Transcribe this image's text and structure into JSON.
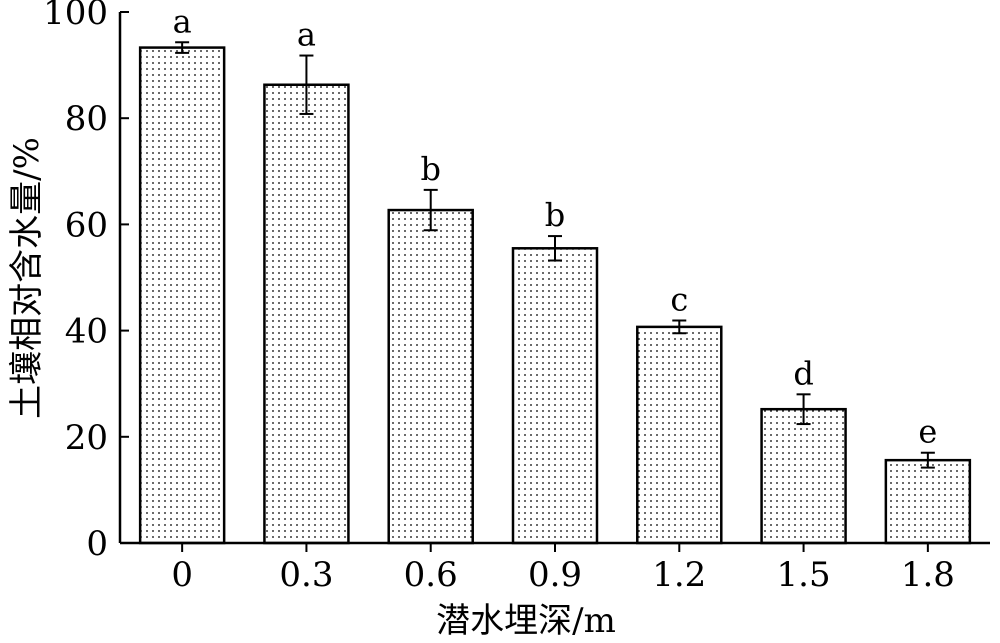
{
  "chart_data": {
    "type": "bar",
    "title": "",
    "xlabel": "潜水埋深/m",
    "ylabel": "土壤相对含水量/%",
    "categories": [
      "0",
      "0.3",
      "0.6",
      "0.9",
      "1.2",
      "1.5",
      "1.8"
    ],
    "values": [
      93.3,
      86.3,
      62.7,
      55.5,
      40.7,
      25.2,
      15.6
    ],
    "errors": [
      1.0,
      5.5,
      3.8,
      2.3,
      1.2,
      2.8,
      1.4
    ],
    "significance": [
      "a",
      "a",
      "b",
      "b",
      "c",
      "d",
      "e"
    ],
    "ylim": [
      0,
      100
    ],
    "yticks": [
      0,
      20,
      40,
      60,
      80,
      100
    ],
    "grid": false,
    "bar_fill": "dotted",
    "colors": {
      "bar_edge": "#000000",
      "bar_fill": "#ffffff",
      "dots": "#000000"
    }
  }
}
